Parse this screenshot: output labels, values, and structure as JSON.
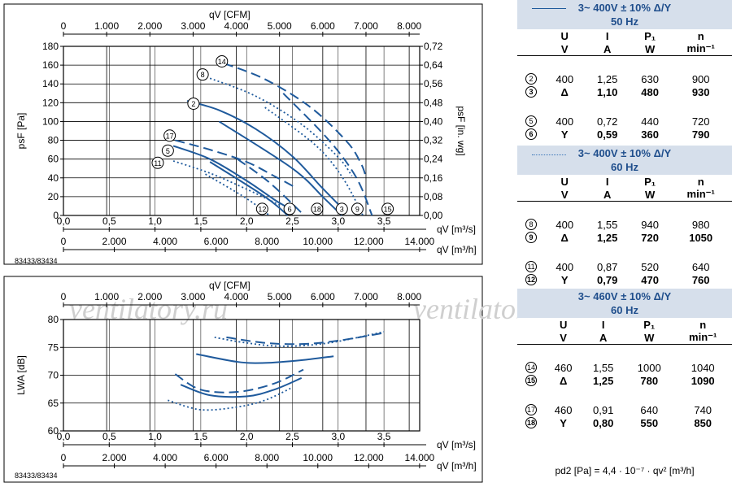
{
  "chart_data": [
    {
      "type": "line",
      "title": "",
      "x_axis_top": {
        "label": "qV [CFM]",
        "ticks": [
          "0",
          "1.000",
          "2.000",
          "3.000",
          "4.000",
          "5.000",
          "6.000",
          "7.000",
          "8.000"
        ]
      },
      "x_axis_bottom_1": {
        "label": "qV [m³/s]",
        "ticks": [
          "0,0",
          "0,5",
          "1,0",
          "1,5",
          "2,0",
          "2,5",
          "3,0",
          "3,5"
        ]
      },
      "x_axis_bottom_2": {
        "label": "qV [m³/h]",
        "ticks": [
          "0",
          "2.000",
          "4.000",
          "6.000",
          "8.000",
          "10.000",
          "12.000",
          "14.000"
        ]
      },
      "y_axis_left": {
        "label": "psF [Pa]",
        "ticks": [
          "0",
          "20",
          "40",
          "60",
          "80",
          "100",
          "120",
          "140",
          "160",
          "180"
        ],
        "ylim": [
          0,
          180
        ]
      },
      "y_axis_right": {
        "label": "psF [in. wg]",
        "ticks": [
          "0,00",
          "0,08",
          "0,16",
          "0,24",
          "0,32",
          "0,40",
          "0,48",
          "0,56",
          "0,64",
          "0,72"
        ]
      },
      "xlim": [
        0,
        3.89
      ],
      "grid": true,
      "code": "83433/83434",
      "series": [
        {
          "id": "2",
          "style": "solid",
          "x": [
            1.35,
            1.7,
            2.1,
            2.5,
            2.8,
            3.0
          ],
          "y": [
            122,
            112,
            92,
            63,
            32,
            12
          ]
        },
        {
          "id": "3",
          "style": "solid",
          "x": [
            1.7,
            2.5,
            2.85,
            3.04
          ],
          "y": [
            100,
            50,
            18,
            0
          ]
        },
        {
          "id": "5",
          "style": "solid",
          "x": [
            1.2,
            1.6,
            2.0,
            2.3,
            2.42
          ],
          "y": [
            74,
            60,
            37,
            17,
            10
          ]
        },
        {
          "id": "6",
          "style": "solid",
          "x": [
            1.6,
            2.2,
            2.45
          ],
          "y": [
            57,
            20,
            0
          ]
        },
        {
          "id": "17",
          "style": "dashed",
          "x": [
            1.22,
            1.6,
            2.0,
            2.3,
            2.53
          ],
          "y": [
            80,
            70,
            57,
            42,
            30
          ]
        },
        {
          "id": "18",
          "style": "dashed",
          "x": [
            1.9,
            2.25,
            2.63
          ],
          "y": [
            60,
            35,
            0
          ]
        },
        {
          "id": "14",
          "style": "dashed",
          "x": [
            1.75,
            2.2,
            2.7,
            3.1,
            3.25,
            3.3
          ],
          "y": [
            162,
            145,
            115,
            78,
            55,
            42
          ]
        },
        {
          "id": "15",
          "style": "dashed",
          "x": [
            2.4,
            2.9,
            3.2,
            3.37
          ],
          "y": [
            130,
            80,
            40,
            0
          ]
        },
        {
          "id": "8",
          "style": "dotted",
          "x": [
            1.6,
            2.1,
            2.6,
            3.0,
            3.15
          ],
          "y": [
            146,
            127,
            97,
            62,
            42
          ]
        },
        {
          "id": "9",
          "style": "dotted",
          "x": [
            2.2,
            2.75,
            3.05,
            3.27
          ],
          "y": [
            115,
            75,
            40,
            0
          ]
        },
        {
          "id": "11",
          "style": "dotted",
          "x": [
            1.2,
            1.6,
            2.0,
            2.3,
            2.38
          ],
          "y": [
            58,
            45,
            28,
            14,
            10
          ]
        },
        {
          "id": "12",
          "style": "dotted",
          "x": [
            1.55,
            2.0,
            2.25
          ],
          "y": [
            44,
            18,
            0
          ]
        }
      ],
      "curve_labels": [
        {
          "id": "14",
          "x": 1.73,
          "y": 164
        },
        {
          "id": "8",
          "x": 1.52,
          "y": 150
        },
        {
          "id": "2",
          "x": 1.42,
          "y": 119
        },
        {
          "id": "17",
          "x": 1.16,
          "y": 85
        },
        {
          "id": "5",
          "x": 1.14,
          "y": 69
        },
        {
          "id": "11",
          "x": 1.03,
          "y": 56
        },
        {
          "id": "12",
          "x": 2.17,
          "y": 7
        },
        {
          "id": "6",
          "x": 2.47,
          "y": 7
        },
        {
          "id": "18",
          "x": 2.77,
          "y": 7
        },
        {
          "id": "3",
          "x": 3.04,
          "y": 7
        },
        {
          "id": "9",
          "x": 3.21,
          "y": 7
        },
        {
          "id": "15",
          "x": 3.54,
          "y": 7
        }
      ]
    },
    {
      "type": "line",
      "title": "",
      "x_axis_top": {
        "label": "qV [CFM]",
        "ticks": [
          "0",
          "1.000",
          "2.000",
          "3.000",
          "4.000",
          "5.000",
          "6.000",
          "7.000",
          "8.000"
        ]
      },
      "x_axis_bottom_1": {
        "label": "qV [m³/s]",
        "ticks": [
          "0,0",
          "0,5",
          "1,0",
          "1,5",
          "2,0",
          "2,5",
          "3,0",
          "3,5"
        ]
      },
      "x_axis_bottom_2": {
        "label": "qV [m³/h]",
        "ticks": [
          "0",
          "2.000",
          "4.000",
          "6.000",
          "8.000",
          "10.000",
          "12.000",
          "14.000"
        ]
      },
      "y_axis_left": {
        "label": "LWA [dB]",
        "ticks": [
          "60",
          "65",
          "70",
          "75",
          "80"
        ],
        "ylim": [
          60,
          80
        ]
      },
      "xlim": [
        0,
        3.89
      ],
      "grid": true,
      "code": "83433/83434",
      "series": [
        {
          "style": "solid",
          "x": [
            1.45,
            1.9,
            2.2,
            2.6,
            2.95
          ],
          "y": [
            73.8,
            72.4,
            72.2,
            72.7,
            73.4
          ]
        },
        {
          "style": "dashed",
          "x": [
            1.78,
            2.2,
            2.6,
            3.0,
            3.5
          ],
          "y": [
            76.8,
            75.8,
            75.6,
            76.2,
            77.6
          ]
        },
        {
          "style": "dotted",
          "x": [
            1.65,
            2.0,
            2.4,
            2.9,
            3.5
          ],
          "y": [
            76.8,
            75.8,
            75.2,
            75.8,
            77.8
          ]
        },
        {
          "style": "solid",
          "x": [
            1.28,
            1.6,
            2.0,
            2.3,
            2.6
          ],
          "y": [
            68.3,
            66.4,
            66.2,
            67.4,
            69.5
          ]
        },
        {
          "style": "dashed",
          "x": [
            1.22,
            1.5,
            1.9,
            2.3,
            2.62
          ],
          "y": [
            70.2,
            67.4,
            67.0,
            68.5,
            71.0
          ]
        },
        {
          "style": "dotted",
          "x": [
            1.14,
            1.5,
            1.9,
            2.2,
            2.5
          ],
          "y": [
            65.5,
            63.8,
            64.3,
            65.5,
            67.8
          ]
        }
      ]
    }
  ],
  "tables": [
    {
      "title_line1": "3~ 400V ± 10% Δ/Y",
      "title_line2": "50 Hz",
      "legend": "solid",
      "headers": [
        "U",
        "I",
        "P₁",
        "n"
      ],
      "units": [
        "V",
        "A",
        "W",
        "min⁻¹"
      ],
      "rows": [
        {
          "curve": "2",
          "U": "400",
          "I": "1,25",
          "P": "630",
          "n": "900",
          "bold": false
        },
        {
          "curve": "3",
          "U": "Δ",
          "I": "1,10",
          "P": "480",
          "n": "930",
          "bold": true
        },
        {
          "curve": "5",
          "U": "400",
          "I": "0,72",
          "P": "440",
          "n": "720",
          "bold": false
        },
        {
          "curve": "6",
          "U": "Y",
          "I": "0,59",
          "P": "360",
          "n": "790",
          "bold": true
        }
      ]
    },
    {
      "title_line1": "3~ 400V ± 10% Δ/Y",
      "title_line2": "60 Hz",
      "legend": "dotted",
      "headers": [
        "U",
        "I",
        "P₁",
        "n"
      ],
      "units": [
        "V",
        "A",
        "W",
        "min⁻¹"
      ],
      "rows": [
        {
          "curve": "8",
          "U": "400",
          "I": "1,55",
          "P": "940",
          "n": "980",
          "bold": false
        },
        {
          "curve": "9",
          "U": "Δ",
          "I": "1,25",
          "P": "720",
          "n": "1050",
          "bold": true
        },
        {
          "curve": "11",
          "U": "400",
          "I": "0,87",
          "P": "520",
          "n": "640",
          "bold": false
        },
        {
          "curve": "12",
          "U": "Y",
          "I": "0,79",
          "P": "470",
          "n": "760",
          "bold": true
        }
      ]
    },
    {
      "title_line1": "3~ 460V ± 10% Δ/Y",
      "title_line2": "60 Hz",
      "legend": "dashed",
      "headers": [
        "U",
        "I",
        "P₁",
        "n"
      ],
      "units": [
        "V",
        "A",
        "W",
        "min⁻¹"
      ],
      "rows": [
        {
          "curve": "14",
          "U": "460",
          "I": "1,55",
          "P": "1000",
          "n": "1040",
          "bold": false
        },
        {
          "curve": "15",
          "U": "Δ",
          "I": "1,25",
          "P": "780",
          "n": "1090",
          "bold": true
        },
        {
          "curve": "17",
          "U": "460",
          "I": "0,91",
          "P": "640",
          "n": "740",
          "bold": false
        },
        {
          "curve": "18",
          "U": "Y",
          "I": "0,80",
          "P": "550",
          "n": "850",
          "bold": true
        }
      ]
    }
  ],
  "formula": "pd2 [Pa] = 4,4 · 10⁻⁷ · qv² [m³/h]",
  "watermark": "ventilatory.ru",
  "colors": {
    "curve": "#1f5a9c",
    "header_bg": "#d6dfeb",
    "header_text": "#1f4e8c"
  }
}
